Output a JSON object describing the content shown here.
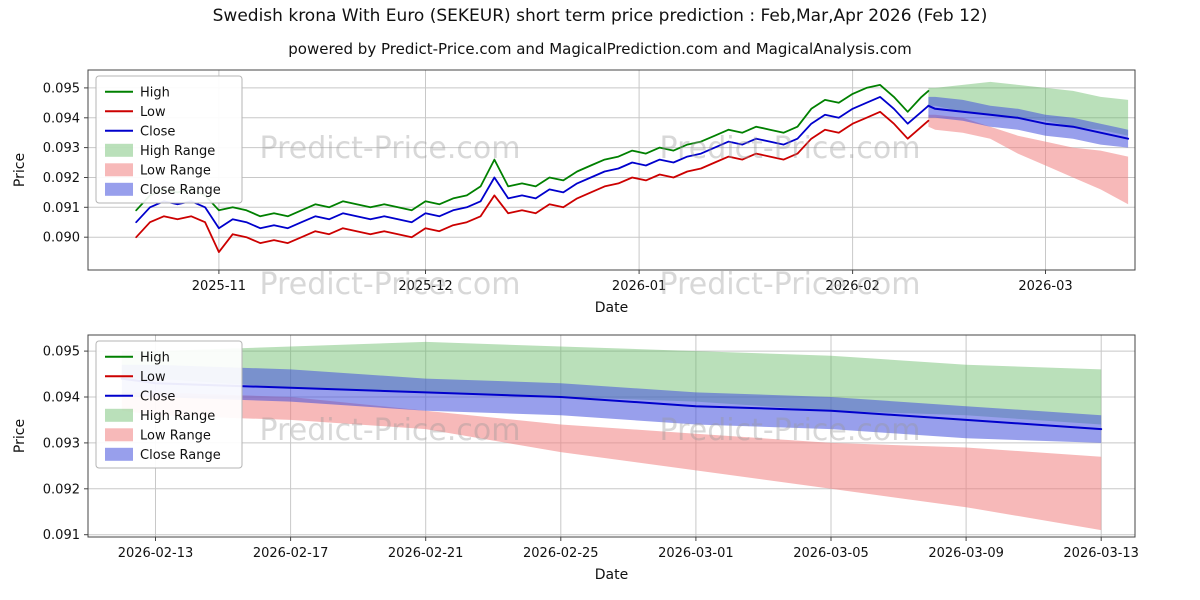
{
  "title": "Swedish krona With Euro (SEKEUR) short term price prediction : Feb,Mar,Apr 2026 (Feb 12)",
  "subtitle": "powered by Predict-Price.com and MagicalPrediction.com and MagicalAnalysis.com",
  "watermark_text": "Predict-Price.com",
  "legend": [
    "High",
    "Low",
    "Close",
    "High Range",
    "Low Range",
    "Close Range"
  ],
  "colors": {
    "high": "#008000",
    "low": "#cc0000",
    "close": "#0000cc",
    "high_range": "#66bb66",
    "low_range": "#f08080",
    "close_range": "#4450dd",
    "high_range_opacity": 0.45,
    "low_range_opacity": 0.55,
    "close_range_opacity": 0.55,
    "grid": "#c8c8c8",
    "frame": "#444444",
    "watermark": "#999999",
    "text": "#111111"
  },
  "chart_data": [
    {
      "type": "line",
      "title": "",
      "xlabel": "Date",
      "ylabel": "Price",
      "xlim": [
        "2025-10-13",
        "2026-03-14"
      ],
      "ylim": [
        0.0889,
        0.0956
      ],
      "grid": true,
      "legend_position": "upper-left",
      "x_ticks": [
        [
          "2025-11-01",
          "2025-11"
        ],
        [
          "2025-12-01",
          "2025-12"
        ],
        [
          "2026-01-01",
          "2026-01"
        ],
        [
          "2026-02-01",
          "2026-02"
        ],
        [
          "2026-03-01",
          "2026-03"
        ]
      ],
      "y_ticks": [
        [
          0.09,
          "0.090"
        ],
        [
          0.091,
          "0.091"
        ],
        [
          0.092,
          "0.092"
        ],
        [
          0.093,
          "0.093"
        ],
        [
          0.094,
          "0.094"
        ],
        [
          0.095,
          "0.095"
        ]
      ],
      "history": {
        "dates": [
          "2025-10-20",
          "2025-10-22",
          "2025-10-24",
          "2025-10-26",
          "2025-10-28",
          "2025-10-30",
          "2025-11-01",
          "2025-11-03",
          "2025-11-05",
          "2025-11-07",
          "2025-11-09",
          "2025-11-11",
          "2025-11-13",
          "2025-11-15",
          "2025-11-17",
          "2025-11-19",
          "2025-11-21",
          "2025-11-23",
          "2025-11-25",
          "2025-11-27",
          "2025-11-29",
          "2025-12-01",
          "2025-12-03",
          "2025-12-05",
          "2025-12-07",
          "2025-12-09",
          "2025-12-11",
          "2025-12-13",
          "2025-12-15",
          "2025-12-17",
          "2025-12-19",
          "2025-12-21",
          "2025-12-23",
          "2025-12-25",
          "2025-12-27",
          "2025-12-29",
          "2025-12-31",
          "2026-01-02",
          "2026-01-04",
          "2026-01-06",
          "2026-01-08",
          "2026-01-10",
          "2026-01-12",
          "2026-01-14",
          "2026-01-16",
          "2026-01-18",
          "2026-01-20",
          "2026-01-22",
          "2026-01-24",
          "2026-01-26",
          "2026-01-28",
          "2026-01-30",
          "2026-02-01",
          "2026-02-03",
          "2026-02-05",
          "2026-02-07",
          "2026-02-09",
          "2026-02-11",
          "2026-02-12"
        ],
        "high": [
          0.0909,
          0.0914,
          0.0916,
          0.0915,
          0.0916,
          0.0914,
          0.0909,
          0.091,
          0.0909,
          0.0907,
          0.0908,
          0.0907,
          0.0909,
          0.0911,
          0.091,
          0.0912,
          0.0911,
          0.091,
          0.0911,
          0.091,
          0.0909,
          0.0912,
          0.0911,
          0.0913,
          0.0914,
          0.0917,
          0.0926,
          0.0917,
          0.0918,
          0.0917,
          0.092,
          0.0919,
          0.0922,
          0.0924,
          0.0926,
          0.0927,
          0.0929,
          0.0928,
          0.093,
          0.0929,
          0.0931,
          0.0932,
          0.0934,
          0.0936,
          0.0935,
          0.0937,
          0.0936,
          0.0935,
          0.0937,
          0.0943,
          0.0946,
          0.0945,
          0.0948,
          0.095,
          0.0951,
          0.0947,
          0.0942,
          0.0947,
          0.0949
        ],
        "low": [
          0.09,
          0.0905,
          0.0907,
          0.0906,
          0.0907,
          0.0905,
          0.0895,
          0.0901,
          0.09,
          0.0898,
          0.0899,
          0.0898,
          0.09,
          0.0902,
          0.0901,
          0.0903,
          0.0902,
          0.0901,
          0.0902,
          0.0901,
          0.09,
          0.0903,
          0.0902,
          0.0904,
          0.0905,
          0.0907,
          0.0914,
          0.0908,
          0.0909,
          0.0908,
          0.0911,
          0.091,
          0.0913,
          0.0915,
          0.0917,
          0.0918,
          0.092,
          0.0919,
          0.0921,
          0.092,
          0.0922,
          0.0923,
          0.0925,
          0.0927,
          0.0926,
          0.0928,
          0.0927,
          0.0926,
          0.0928,
          0.0933,
          0.0936,
          0.0935,
          0.0938,
          0.094,
          0.0942,
          0.0938,
          0.0933,
          0.0937,
          0.0939
        ],
        "close": [
          0.0905,
          0.091,
          0.0912,
          0.0911,
          0.0912,
          0.091,
          0.0903,
          0.0906,
          0.0905,
          0.0903,
          0.0904,
          0.0903,
          0.0905,
          0.0907,
          0.0906,
          0.0908,
          0.0907,
          0.0906,
          0.0907,
          0.0906,
          0.0905,
          0.0908,
          0.0907,
          0.0909,
          0.091,
          0.0912,
          0.092,
          0.0913,
          0.0914,
          0.0913,
          0.0916,
          0.0915,
          0.0918,
          0.092,
          0.0922,
          0.0923,
          0.0925,
          0.0924,
          0.0926,
          0.0925,
          0.0927,
          0.0928,
          0.093,
          0.0932,
          0.0931,
          0.0933,
          0.0932,
          0.0931,
          0.0933,
          0.0938,
          0.0941,
          0.094,
          0.0943,
          0.0945,
          0.0947,
          0.0943,
          0.0938,
          0.0942,
          0.0944
        ]
      },
      "forecast": {
        "dates": [
          "2026-02-12",
          "2026-02-13",
          "2026-02-17",
          "2026-02-21",
          "2026-02-25",
          "2026-03-01",
          "2026-03-05",
          "2026-03-09",
          "2026-03-13"
        ],
        "high_upper": [
          0.095,
          0.095,
          0.0951,
          0.0952,
          0.0951,
          0.095,
          0.0949,
          0.0947,
          0.0946
        ],
        "high_lower": [
          0.0944,
          0.0944,
          0.0942,
          0.0941,
          0.094,
          0.0939,
          0.0937,
          0.0936,
          0.0934
        ],
        "low_upper": [
          0.0941,
          0.0941,
          0.094,
          0.0937,
          0.0934,
          0.0932,
          0.093,
          0.0929,
          0.0927
        ],
        "low_lower": [
          0.0937,
          0.0936,
          0.0935,
          0.0933,
          0.0928,
          0.0924,
          0.092,
          0.0916,
          0.0911
        ],
        "close_upper": [
          0.0947,
          0.0947,
          0.0946,
          0.0944,
          0.0943,
          0.0941,
          0.094,
          0.0938,
          0.0936
        ],
        "close_lower": [
          0.094,
          0.094,
          0.0939,
          0.0937,
          0.0936,
          0.0934,
          0.0933,
          0.0931,
          0.093
        ],
        "close": [
          0.0944,
          0.0943,
          0.0942,
          0.0941,
          0.094,
          0.0938,
          0.0937,
          0.0935,
          0.0933
        ]
      }
    },
    {
      "type": "line",
      "title": "",
      "xlabel": "Date",
      "ylabel": "Price",
      "xlim": [
        "2026-02-11",
        "2026-03-14"
      ],
      "ylim": [
        0.09095,
        0.09535
      ],
      "grid": true,
      "legend_position": "upper-left",
      "x_ticks": [
        [
          "2026-02-13",
          "2026-02-13"
        ],
        [
          "2026-02-17",
          "2026-02-17"
        ],
        [
          "2026-02-21",
          "2026-02-21"
        ],
        [
          "2026-02-25",
          "2026-02-25"
        ],
        [
          "2026-03-01",
          "2026-03-01"
        ],
        [
          "2026-03-05",
          "2026-03-05"
        ],
        [
          "2026-03-09",
          "2026-03-09"
        ],
        [
          "2026-03-13",
          "2026-03-13"
        ]
      ],
      "y_ticks": [
        [
          0.091,
          "0.091"
        ],
        [
          0.092,
          "0.092"
        ],
        [
          0.093,
          "0.093"
        ],
        [
          0.094,
          "0.094"
        ],
        [
          0.095,
          "0.095"
        ]
      ],
      "forecast": {
        "dates": [
          "2026-02-12",
          "2026-02-13",
          "2026-02-17",
          "2026-02-21",
          "2026-02-25",
          "2026-03-01",
          "2026-03-05",
          "2026-03-09",
          "2026-03-13"
        ],
        "high_upper": [
          0.095,
          0.095,
          0.0951,
          0.0952,
          0.0951,
          0.095,
          0.0949,
          0.0947,
          0.0946
        ],
        "high_lower": [
          0.0944,
          0.0944,
          0.0942,
          0.0941,
          0.094,
          0.0939,
          0.0937,
          0.0936,
          0.0934
        ],
        "low_upper": [
          0.0941,
          0.0941,
          0.094,
          0.0937,
          0.0934,
          0.0932,
          0.093,
          0.0929,
          0.0927
        ],
        "low_lower": [
          0.0937,
          0.0936,
          0.0935,
          0.0933,
          0.0928,
          0.0924,
          0.092,
          0.0916,
          0.0911
        ],
        "close_upper": [
          0.0947,
          0.0947,
          0.0946,
          0.0944,
          0.0943,
          0.0941,
          0.094,
          0.0938,
          0.0936
        ],
        "close_lower": [
          0.094,
          0.094,
          0.0939,
          0.0937,
          0.0936,
          0.0934,
          0.0933,
          0.0931,
          0.093
        ],
        "close": [
          0.0944,
          0.0943,
          0.0942,
          0.0941,
          0.094,
          0.0938,
          0.0937,
          0.0935,
          0.0933
        ]
      }
    }
  ]
}
